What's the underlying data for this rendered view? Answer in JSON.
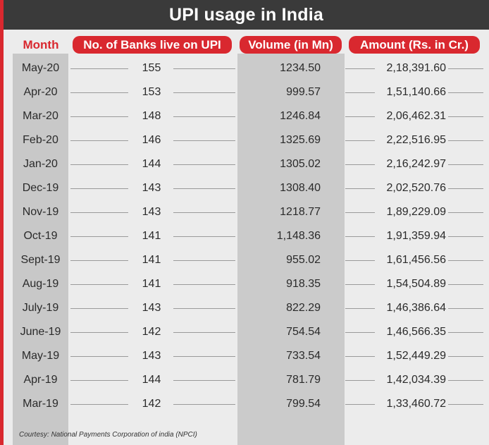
{
  "chart_data": {
    "type": "table",
    "title": "UPI usage in India",
    "columns": [
      "Month",
      "No. of Banks live on UPI",
      "Volume (in Mn)",
      "Amount (Rs. in Cr.)"
    ],
    "rows": [
      {
        "month": "May-20",
        "banks": "155",
        "volume": "1234.50",
        "amount": "2,18,391.60"
      },
      {
        "month": "Apr-20",
        "banks": "153",
        "volume": "999.57",
        "amount": "1,51,140.66"
      },
      {
        "month": "Mar-20",
        "banks": "148",
        "volume": "1246.84",
        "amount": "2,06,462.31"
      },
      {
        "month": "Feb-20",
        "banks": "146",
        "volume": "1325.69",
        "amount": "2,22,516.95"
      },
      {
        "month": "Jan-20",
        "banks": "144",
        "volume": "1305.02",
        "amount": "2,16,242.97"
      },
      {
        "month": "Dec-19",
        "banks": "143",
        "volume": "1308.40",
        "amount": "2,02,520.76"
      },
      {
        "month": "Nov-19",
        "banks": "143",
        "volume": "1218.77",
        "amount": "1,89,229.09"
      },
      {
        "month": "Oct-19",
        "banks": "141",
        "volume": "1,148.36",
        "amount": "1,91,359.94"
      },
      {
        "month": "Sept-19",
        "banks": "141",
        "volume": "955.02",
        "amount": "1,61,456.56"
      },
      {
        "month": "Aug-19",
        "banks": "141",
        "volume": "918.35",
        "amount": "1,54,504.89"
      },
      {
        "month": "July-19",
        "banks": "143",
        "volume": "822.29",
        "amount": "1,46,386.64"
      },
      {
        "month": "June-19",
        "banks": "142",
        "volume": "754.54",
        "amount": "1,46,566.35"
      },
      {
        "month": "May-19",
        "banks": "143",
        "volume": "733.54",
        "amount": "1,52,449.29"
      },
      {
        "month": "Apr-19",
        "banks": "144",
        "volume": "781.79",
        "amount": "1,42,034.39"
      },
      {
        "month": "Mar-19",
        "banks": "142",
        "volume": "799.54",
        "amount": "1,33,460.72"
      }
    ],
    "source": "Courtesy: National Payments Corporation of india (NPCI)"
  },
  "colors": {
    "accent": "#d9282f",
    "title_bg": "#3a3a3a",
    "paper": "#ececec"
  }
}
